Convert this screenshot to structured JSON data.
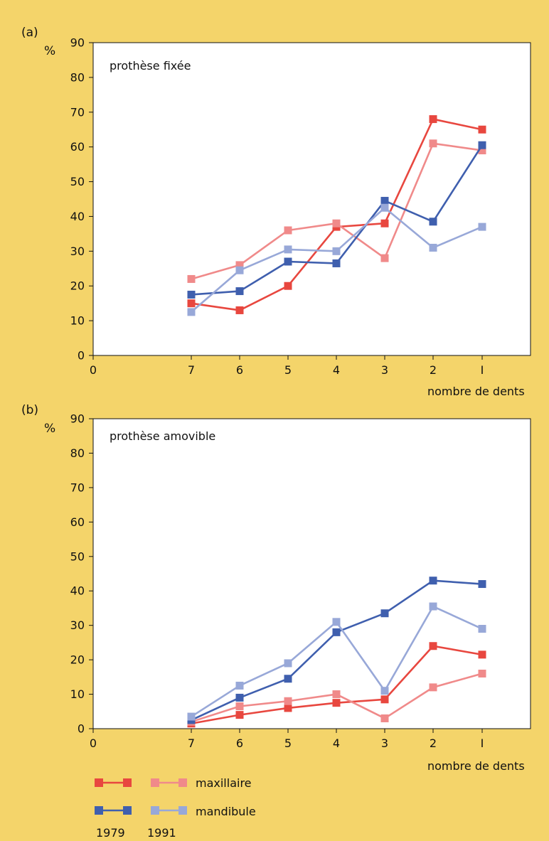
{
  "background": "#f4d46a",
  "plot_background": "#ffffff",
  "series_styles": [
    {
      "key": "max79",
      "color": "#e8473f"
    },
    {
      "key": "max91",
      "color": "#f08a8a"
    },
    {
      "key": "man79",
      "color": "#3f5fae"
    },
    {
      "key": "man91",
      "color": "#98a8d8"
    }
  ],
  "chart_data": [
    {
      "type": "line",
      "panel_label": "(a)",
      "title": "prothèse fixée",
      "ylabel": "%",
      "xlabel": "nombre de dents",
      "ylim": [
        0,
        90
      ],
      "yticks": [
        0,
        10,
        20,
        30,
        40,
        50,
        60,
        70,
        80,
        90
      ],
      "xticks": [
        "0",
        "7",
        "6",
        "5",
        "4",
        "3",
        "2",
        "1"
      ],
      "x": [
        7,
        6,
        5,
        4,
        3,
        2,
        1
      ],
      "series": [
        {
          "key": "max79",
          "values": [
            15,
            13,
            20,
            37,
            38,
            68,
            65
          ]
        },
        {
          "key": "max91",
          "values": [
            22,
            26,
            36,
            38,
            28,
            61,
            59
          ]
        },
        {
          "key": "man79",
          "values": [
            17.5,
            18.5,
            27,
            26.5,
            44.5,
            38.5,
            60.5
          ]
        },
        {
          "key": "man91",
          "values": [
            12.5,
            24.5,
            30.5,
            30,
            42.5,
            31,
            37
          ]
        }
      ]
    },
    {
      "type": "line",
      "panel_label": "(b)",
      "title": "prothèse amovible",
      "ylabel": "%",
      "xlabel": "nombre de dents",
      "ylim": [
        0,
        90
      ],
      "yticks": [
        0,
        10,
        20,
        30,
        40,
        50,
        60,
        70,
        80,
        90
      ],
      "xticks": [
        "0",
        "7",
        "6",
        "5",
        "4",
        "3",
        "2",
        "1"
      ],
      "x": [
        7,
        6,
        5,
        4,
        3,
        2,
        1
      ],
      "series": [
        {
          "key": "max79",
          "values": [
            1.5,
            4,
            6,
            7.5,
            8.5,
            24,
            21.5
          ]
        },
        {
          "key": "max91",
          "values": [
            2,
            6.5,
            8,
            10,
            3,
            12,
            16
          ]
        },
        {
          "key": "man79",
          "values": [
            2.5,
            9,
            14.5,
            28,
            33.5,
            43,
            42
          ]
        },
        {
          "key": "man91",
          "values": [
            3.5,
            12.5,
            19,
            31,
            11,
            35.5,
            29
          ]
        }
      ]
    }
  ],
  "legend": {
    "rows": [
      {
        "label": "maxillaire",
        "left_key": "max79",
        "right_key": "max91"
      },
      {
        "label": "mandibule",
        "left_key": "man79",
        "right_key": "man91"
      }
    ],
    "years": [
      "1979",
      "1991"
    ]
  }
}
